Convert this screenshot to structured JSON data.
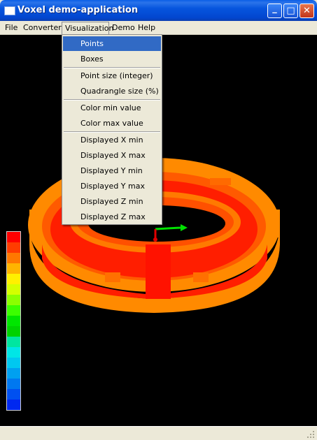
{
  "window": {
    "title": "Voxel demo-application"
  },
  "title_buttons": {
    "minimize": "_",
    "maximize": "□",
    "close": "✕"
  },
  "menubar": [
    {
      "label": "File"
    },
    {
      "label": "Converter"
    },
    {
      "label": "Visualization"
    },
    {
      "label": "Demo"
    },
    {
      "label": "Help"
    }
  ],
  "visualization_menu": {
    "items": [
      {
        "label": "Points",
        "selected": true
      },
      {
        "label": "Boxes"
      },
      {
        "label": "Point size (integer)"
      },
      {
        "label": "Quadrangle size (%)"
      },
      {
        "label": "Color min value"
      },
      {
        "label": "Color max value"
      },
      {
        "label": "Displayed X min"
      },
      {
        "label": "Displayed X max"
      },
      {
        "label": "Displayed Y min"
      },
      {
        "label": "Displayed Y max"
      },
      {
        "label": "Displayed Z min"
      },
      {
        "label": "Displayed Z max"
      }
    ]
  },
  "viewport": {
    "background": "#000000",
    "torus_colors": {
      "outer": "#ff8a00",
      "mid": "#ff5a00",
      "core": "#ff1e00"
    },
    "axes_colors": {
      "x": "#00e000",
      "y": "#e00000"
    }
  },
  "legend": {
    "colors": [
      "#ff0000",
      "#ff3c00",
      "#ff7800",
      "#ffb400",
      "#fff000",
      "#d4ff00",
      "#8cff00",
      "#3cff00",
      "#00e600",
      "#00d200",
      "#00e6a0",
      "#00e6e6",
      "#00c8f0",
      "#00a0f0",
      "#0078f0",
      "#0050f0",
      "#0028f0"
    ]
  }
}
